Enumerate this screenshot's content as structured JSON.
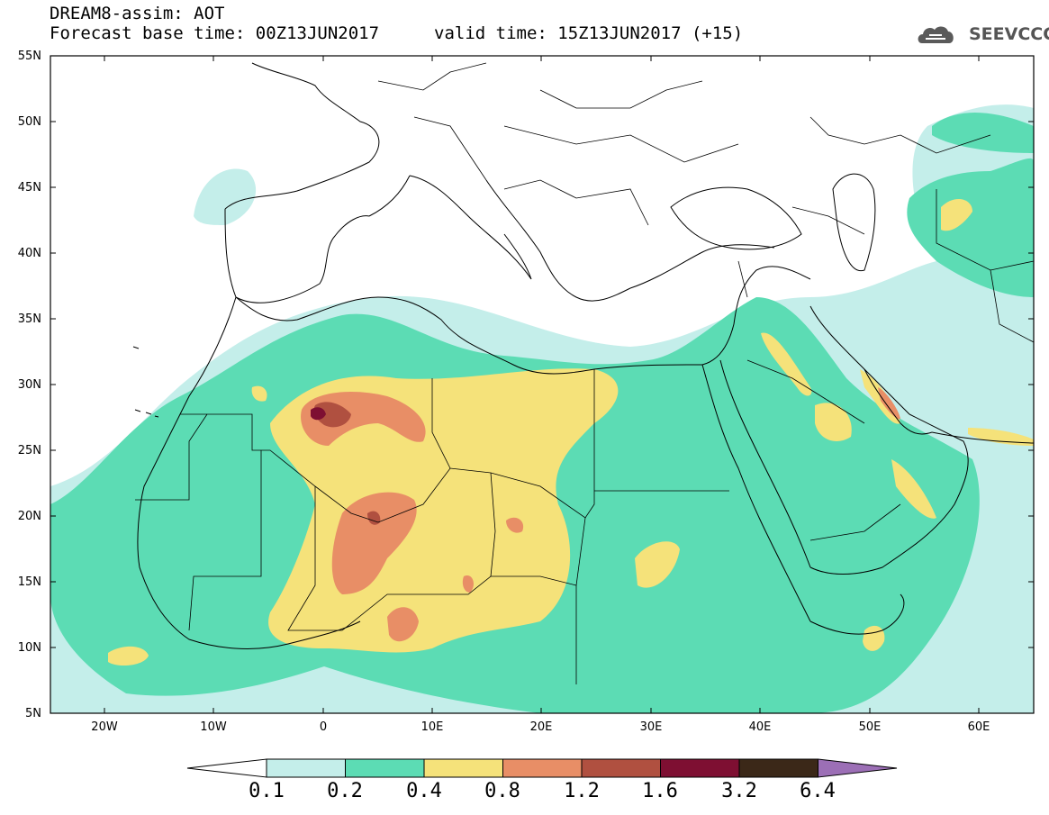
{
  "header": {
    "title_line1": "DREAM8-assim: AOT",
    "forecast_base": "Forecast base time: 00Z13JUN2017",
    "valid_time": "valid time: 15Z13JUN2017 (+15)"
  },
  "logo": {
    "text": "SEEVCCC",
    "icon": "cloud-icon"
  },
  "map": {
    "variable": "Aerosol optical thickness",
    "lon_range": [
      -25,
      65
    ],
    "lat_range": [
      5,
      55
    ],
    "lat_labels": [
      "55N",
      "50N",
      "45N",
      "40N",
      "35N",
      "30N",
      "25N",
      "20N",
      "15N",
      "10N",
      "5N"
    ],
    "lon_labels": [
      "20W",
      "10W",
      "0",
      "10E",
      "20E",
      "30E",
      "40E",
      "50E",
      "60E"
    ]
  },
  "legend": {
    "levels": [
      "0.1",
      "0.2",
      "0.4",
      "0.8",
      "1.2",
      "1.6",
      "3.2",
      "6.4"
    ],
    "colors": [
      "#c4eeea",
      "#5cdcb4",
      "#f5e27a",
      "#e88e66",
      "#b05040",
      "#7e0f32",
      "#3b2818",
      "#9c6fb6"
    ]
  }
}
